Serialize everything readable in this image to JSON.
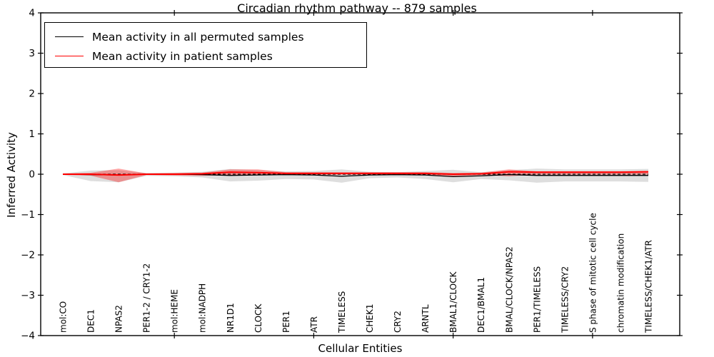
{
  "chart_data": {
    "type": "line",
    "title": "Circadian rhythm pathway -- 879 samples",
    "xlabel": "Cellular Entities",
    "ylabel": "Inferred Activity",
    "ylim": [
      -4,
      4
    ],
    "grid": false,
    "legend_position": "upper left",
    "yticks": [
      {
        "v": 4,
        "label": "4"
      },
      {
        "v": 3,
        "label": "3"
      },
      {
        "v": 2,
        "label": "2"
      },
      {
        "v": 1,
        "label": "1"
      },
      {
        "v": 0,
        "label": "0"
      },
      {
        "v": -1,
        "label": "−1"
      },
      {
        "v": -2,
        "label": "−2"
      },
      {
        "v": -3,
        "label": "−3"
      },
      {
        "v": -4,
        "label": "−4"
      }
    ],
    "xtick_indices": [
      4,
      9,
      14,
      19
    ],
    "categories": [
      "mol:CO",
      "DEC1",
      "NPAS2",
      "PER1-2 / CRY1-2",
      "mol:HEME",
      "mol:NADPH",
      "NR1D1",
      "CLOCK",
      "PER1",
      "ATR",
      "TIMELESS",
      "CHEK1",
      "CRY2",
      "ARNTL",
      "BMAL1/CLOCK",
      "DEC1/BMAL1",
      "BMAL/CLOCK/NPAS2",
      "PER1/TIMELESS",
      "TIMELESS/CRY2",
      "S phase of mitotic cell cycle",
      "chromatin modification",
      "TIMELESS/CHEK1/ATR"
    ],
    "legend": [
      {
        "label": "Mean activity in all permuted samples",
        "color": "#000000"
      },
      {
        "label": "Mean activity in patient samples",
        "color": "#ff0000"
      }
    ],
    "baseline": {
      "value": 0,
      "color": "#000000",
      "style": "dashed"
    },
    "series": [
      {
        "name": "Mean activity in all permuted samples",
        "color": "#000000",
        "style": "solid",
        "width": 1.3,
        "values": [
          0,
          -0.01,
          -0.02,
          0,
          0,
          -0.01,
          -0.03,
          -0.02,
          -0.01,
          -0.02,
          -0.05,
          -0.02,
          -0.01,
          -0.02,
          -0.06,
          -0.04,
          -0.01,
          -0.03,
          -0.03,
          -0.03,
          -0.03,
          -0.03
        ]
      },
      {
        "name": "Mean activity in patient samples",
        "color": "#ff0000",
        "style": "solid",
        "width": 2,
        "values": [
          0,
          0,
          -0.02,
          0,
          0,
          0.01,
          0.05,
          0.04,
          0.02,
          0.02,
          0.02,
          0.02,
          0.02,
          0.02,
          0,
          0.01,
          0.06,
          0.05,
          0.05,
          0.05,
          0.05,
          0.06
        ]
      }
    ],
    "bands": [
      {
        "name": "permuted samples range",
        "color": "rgba(0,0,0,0.13)",
        "upper": [
          0.02,
          0.09,
          0.1,
          0.03,
          0.04,
          0.06,
          0.13,
          0.1,
          0.07,
          0.08,
          0.12,
          0.06,
          0.05,
          0.08,
          0.11,
          0.05,
          0.1,
          0.14,
          0.12,
          0.12,
          0.12,
          0.13
        ],
        "lower": [
          -0.02,
          -0.17,
          -0.2,
          -0.04,
          -0.05,
          -0.08,
          -0.18,
          -0.16,
          -0.12,
          -0.13,
          -0.21,
          -0.1,
          -0.08,
          -0.12,
          -0.2,
          -0.12,
          -0.15,
          -0.21,
          -0.18,
          -0.18,
          -0.18,
          -0.19
        ]
      },
      {
        "name": "patient samples range",
        "color": "rgba(255,0,0,0.35)",
        "upper": [
          0.015,
          0.035,
          0.14,
          0.02,
          0.03,
          0.04,
          0.12,
          0.12,
          0.05,
          0.05,
          0.05,
          0.05,
          0.05,
          0.05,
          0.03,
          0.04,
          0.12,
          0.07,
          0.07,
          0.07,
          0.07,
          0.08
        ],
        "lower": [
          -0.015,
          -0.035,
          -0.2,
          -0.02,
          -0.03,
          -0.04,
          -0.02,
          -0.02,
          -0.01,
          -0.01,
          -0.01,
          -0.01,
          -0.01,
          -0.01,
          -0.06,
          -0.02,
          -0.05,
          -0.01,
          -0.01,
          -0.01,
          -0.01,
          -0.01
        ]
      }
    ]
  }
}
